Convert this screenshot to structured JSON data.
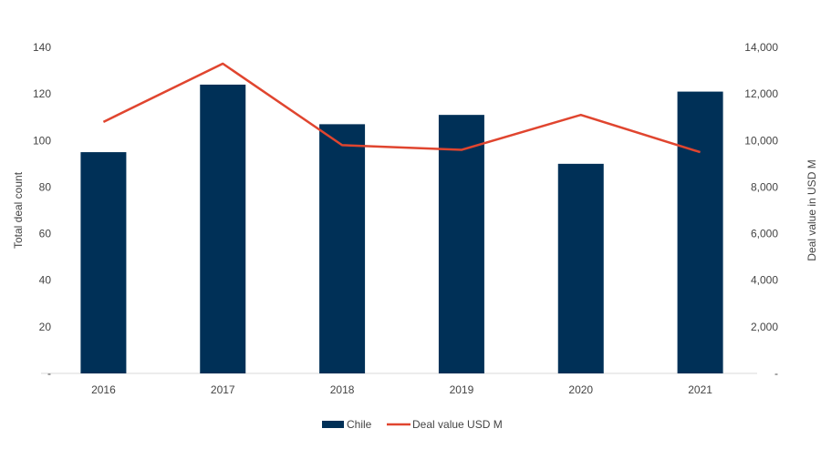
{
  "chart_data": {
    "type": "bar+line",
    "categories": [
      "2016",
      "2017",
      "2018",
      "2019",
      "2020",
      "2021"
    ],
    "series": [
      {
        "name": "Chile",
        "type": "bar",
        "axis": "left",
        "color": "#003057",
        "values": [
          95,
          124,
          107,
          111,
          90,
          121
        ]
      },
      {
        "name": "Deal value USD M",
        "type": "line",
        "axis": "right",
        "color": "#e0452f",
        "values": [
          10800,
          13300,
          9800,
          9600,
          11100,
          9500
        ]
      }
    ],
    "ylabel": "Total deal count",
    "y2label": "Deal value in USD M",
    "ylim": [
      0,
      140
    ],
    "y2lim": [
      0,
      14000
    ],
    "yticks": [
      "-",
      "20",
      "40",
      "60",
      "80",
      "100",
      "120",
      "140"
    ],
    "y2ticks": [
      "-",
      "2,000",
      "4,000",
      "6,000",
      "8,000",
      "10,000",
      "12,000",
      "14,000"
    ],
    "grid": false,
    "legend": "bottom"
  }
}
